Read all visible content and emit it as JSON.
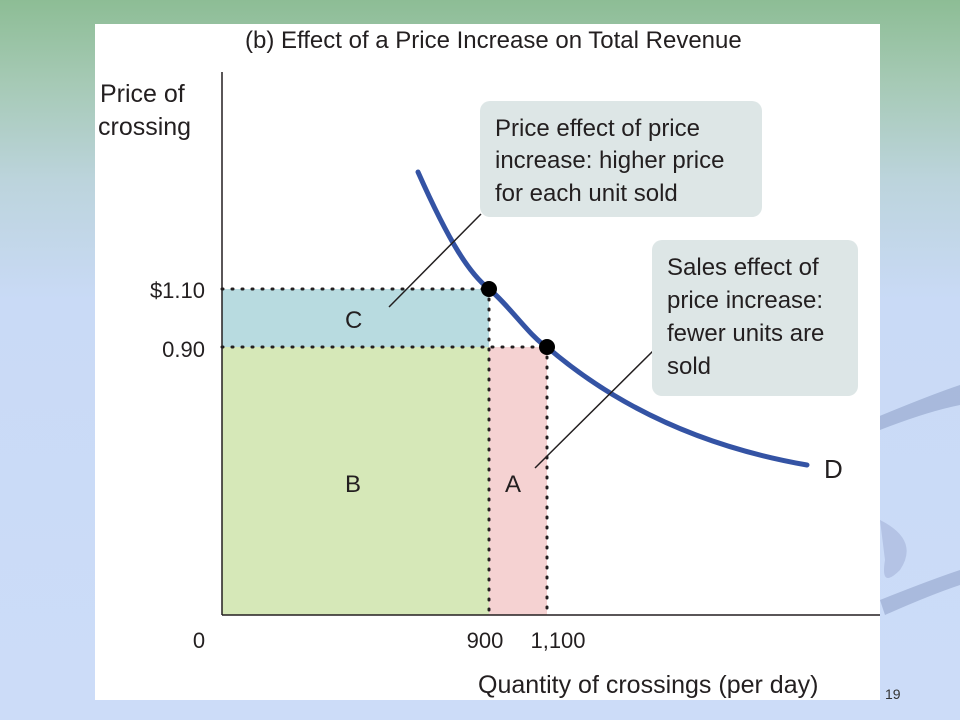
{
  "slide": {
    "number": "19"
  },
  "colors": {
    "curve": "#3453a4",
    "area_a": "#f5d2d2",
    "area_b": "#d6e8b8",
    "area_c": "#b8dbe0",
    "callout": "#dde6e6",
    "axis": "#231f20"
  },
  "chart_data": {
    "type": "area",
    "title": "(b)  Effect of a Price Increase on Total Revenue",
    "ylabel_lines": [
      "Price of",
      "crossing"
    ],
    "xlabel": "Quantity of crossings (per day)",
    "origin_label": "0",
    "x_ticks": [
      {
        "value": 900,
        "label": "900"
      },
      {
        "value": 1100,
        "label": "1,100"
      }
    ],
    "y_ticks": [
      {
        "value": 1.1,
        "label": "$1.10"
      },
      {
        "value": 0.9,
        "label": "0.90"
      }
    ],
    "demand_curve": {
      "label": "D",
      "points": [
        {
          "x": 900,
          "y": 1.1
        },
        {
          "x": 1100,
          "y": 0.9
        }
      ]
    },
    "regions": [
      {
        "label": "C",
        "x": [
          0,
          900
        ],
        "y": [
          0.9,
          1.1
        ]
      },
      {
        "label": "B",
        "x": [
          0,
          900
        ],
        "y": [
          0,
          0.9
        ]
      },
      {
        "label": "A",
        "x": [
          900,
          1100
        ],
        "y": [
          0,
          0.9
        ]
      }
    ],
    "annotations": [
      {
        "lines": [
          "Price effect of price",
          "increase: higher price",
          "for each unit sold"
        ],
        "target": "C"
      },
      {
        "lines": [
          "Sales effect of",
          "price increase:",
          "fewer units are",
          "sold"
        ],
        "target": "A"
      }
    ]
  }
}
